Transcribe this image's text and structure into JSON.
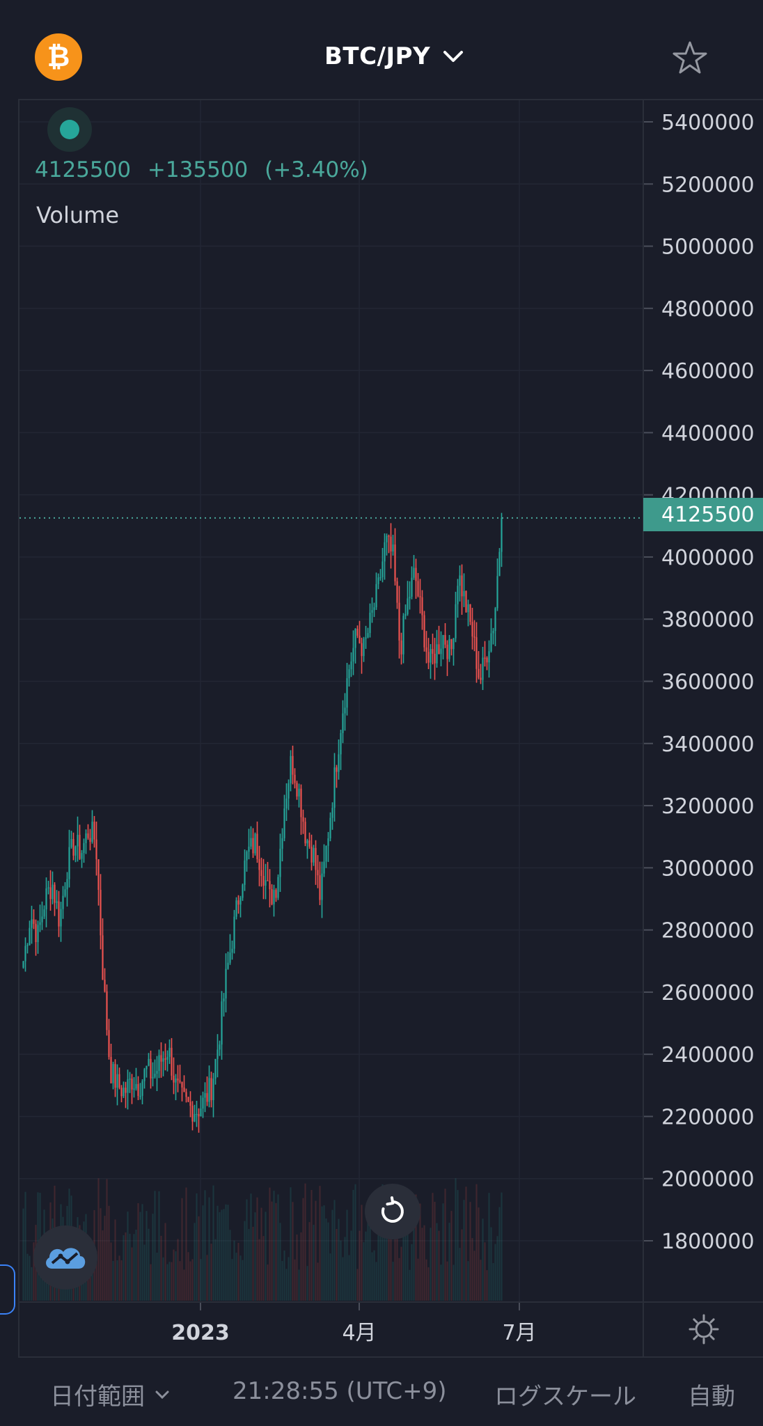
{
  "header": {
    "symbol": "BTC/JPY",
    "coin_icon": "bitcoin-icon",
    "coin_glyph": "₿",
    "favorite_icon": "star-icon"
  },
  "legend": {
    "last": "4125500",
    "change": "+135500",
    "change_pct": "(+3.40%)",
    "indicator": "Volume"
  },
  "price_tag": "4125500",
  "colors": {
    "up": "#26a69a",
    "down": "#ef5350",
    "accent": "#3e9a8c",
    "background": "#1a1d29"
  },
  "chart_data": {
    "type": "candlestick",
    "symbol": "BTC/JPY",
    "y_ticks": [
      "5400000",
      "5200000",
      "5000000",
      "4800000",
      "4600000",
      "4400000",
      "4200000",
      "4000000",
      "3800000",
      "3600000",
      "3400000",
      "3200000",
      "3000000",
      "2800000",
      "2600000",
      "2400000",
      "2200000",
      "2000000",
      "1800000"
    ],
    "x_ticks": [
      "2023",
      "4月",
      "7月"
    ],
    "ylim": [
      1600000,
      5450000
    ],
    "last_price": 4125500,
    "series": [
      {
        "name": "close_path",
        "values": [
          2700000,
          2850000,
          2780000,
          2900000,
          2950000,
          2830000,
          3000000,
          3080000,
          3050000,
          3120000,
          3090000,
          2650000,
          2350000,
          2300000,
          2280000,
          2320000,
          2300000,
          2350000,
          2330000,
          2380000,
          2420000,
          2300000,
          2250000,
          2230000,
          2220000,
          2250000,
          2300000,
          2450000,
          2650000,
          2800000,
          2950000,
          3050000,
          3080000,
          3000000,
          2900000,
          2950000,
          3200000,
          3350000,
          3250000,
          3100000,
          3050000,
          2900000,
          3100000,
          3300000,
          3500000,
          3650000,
          3750000,
          3700000,
          3800000,
          3900000,
          4050000,
          4000000,
          3700000,
          3850000,
          3950000,
          3800000,
          3650000,
          3700000,
          3750000,
          3680000,
          3950000,
          3850000,
          3750000,
          3600000,
          3700000,
          3800000,
          4125500
        ]
      }
    ],
    "volume_note": "Volume"
  },
  "controls": {
    "reset_icon": "reset-icon",
    "tradingview_icon": "tradingview-logo-icon",
    "settings_icon": "gear-icon"
  },
  "bottombar": {
    "date_range": "日付範囲",
    "time": "21:28:55 (UTC+9)",
    "log_scale": "ログスケール",
    "auto": "自動"
  }
}
